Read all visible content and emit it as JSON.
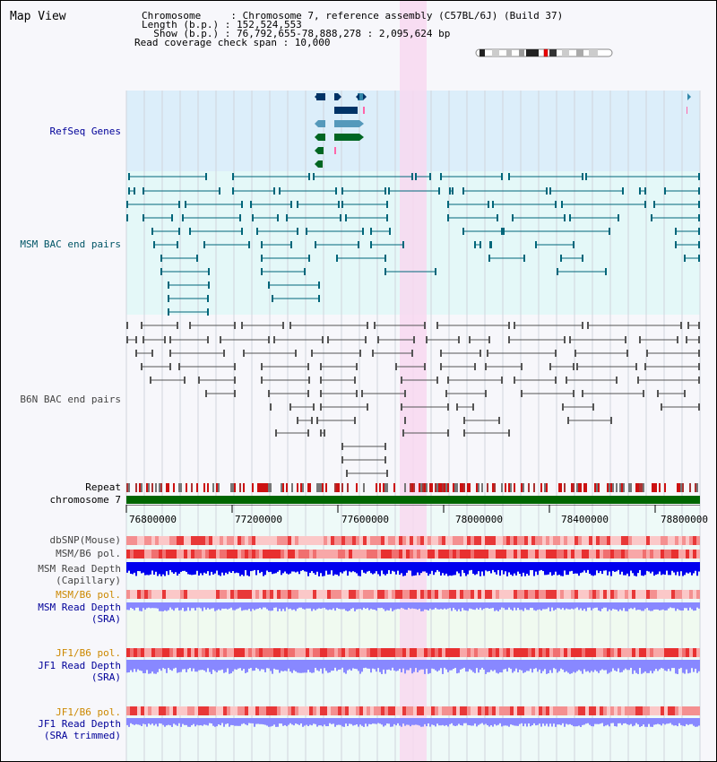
{
  "header": {
    "title": "Map View",
    "chromosome_line": "Chromosome     : Chromosome 7, reference assembly (C57BL/6J) (Build 37)",
    "length_line": "Length (b.p.) : 152,524,553",
    "show_line": "  Show (b.p.) : 76,792,655-78,888,278 : 2,095,624 bp",
    "span_line": "Read coverage check span : 10,000"
  },
  "tracks": {
    "refseq": "RefSeq Genes",
    "msm_bac": "MSM BAC end pairs",
    "b6n_bac": "B6N BAC end pairs",
    "repeat": "Repeat",
    "chromosome": "chromosome 7",
    "dbsnp": "dbSNP(Mouse)",
    "msm_b6_pol_1": "MSM/B6 pol.",
    "msm_read_depth_1": "MSM Read Depth",
    "msm_read_depth_1_sub": "(Capillary)",
    "msm_b6_pol_2": "MSM/B6 pol.",
    "msm_read_depth_2": "MSM Read Depth",
    "msm_read_depth_2_sub": "(SRA)",
    "jf1_b6_pol_1": "JF1/B6 pol.",
    "jf1_read_depth_1": "JF1 Read Depth",
    "jf1_read_depth_1_sub": "(SRA)",
    "jf1_b6_pol_2": "JF1/B6 pol.",
    "jf1_read_depth_2": "JF1 Read Depth",
    "jf1_read_depth_2_sub": "(SRA trimmed)"
  },
  "axis": {
    "ticks": [
      "76800000",
      "77200000",
      "77600000",
      "78000000",
      "78400000",
      "78800000"
    ]
  },
  "colors": {
    "refseq_bg": "#dceefa",
    "msm_bg": "#e4f8f8",
    "highlight": "#f8d8f0",
    "chromosome_bar": "#006600",
    "depth_capillary": "#0000ee",
    "depth_sra": "#8888ff",
    "msm_line": "#00667a",
    "b6n_line": "#555555"
  }
}
